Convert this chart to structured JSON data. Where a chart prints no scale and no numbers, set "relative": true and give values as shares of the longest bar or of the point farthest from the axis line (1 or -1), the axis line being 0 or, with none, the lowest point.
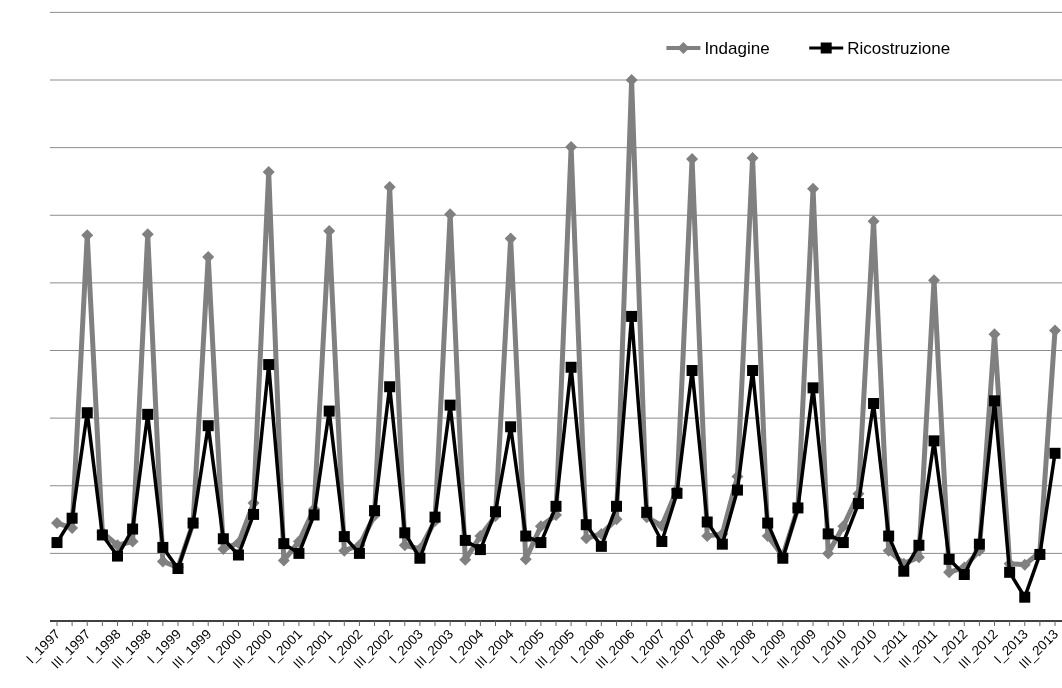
{
  "chart_data": {
    "type": "line",
    "relative": true,
    "grid": "y",
    "legend": "top right",
    "line_style": "solid",
    "categories": [
      "I_1997",
      null,
      "III_1997",
      null,
      "I_1998",
      null,
      "III_1998",
      null,
      "I_1999",
      null,
      "III_1999",
      null,
      "I_2000",
      null,
      "III_2000",
      null,
      "I_2001",
      null,
      "III_2001",
      null,
      "I_2002",
      null,
      "III_2002",
      null,
      "I_2003",
      null,
      "III_2003",
      null,
      "I_2004",
      null,
      "III_2004",
      null,
      "I_2005",
      null,
      "III_2005",
      null,
      "I_2006",
      null,
      "III_2006",
      null,
      "I_2007",
      null,
      "III_2007",
      null,
      "I_2008",
      null,
      "III_2008",
      null,
      "I_2009",
      null,
      "III_2009",
      null,
      "I_2010",
      null,
      "III_2010",
      null,
      "I_2011",
      null,
      "III_2011",
      null,
      "I_2012",
      null,
      "III_2012",
      null,
      "I_2013",
      null,
      "III_2013"
    ],
    "series": [
      {
        "name": "Indagine",
        "color": "#808080",
        "marker": "diamond",
        "values": [
          0.181,
          0.172,
          0.713,
          0.164,
          0.14,
          0.147,
          0.715,
          0.11,
          0.099,
          0.181,
          0.673,
          0.133,
          0.144,
          0.218,
          0.83,
          0.112,
          0.147,
          0.207,
          0.721,
          0.13,
          0.14,
          0.195,
          0.802,
          0.14,
          0.133,
          0.185,
          0.752,
          0.113,
          0.157,
          0.194,
          0.707,
          0.114,
          0.175,
          0.196,
          0.876,
          0.153,
          0.161,
          0.188,
          1,
          0.192,
          0.176,
          0.243,
          0.854,
          0.157,
          0.161,
          0.267,
          0.856,
          0.157,
          0.12,
          0.209,
          0.799,
          0.125,
          0.175,
          0.235,
          0.739,
          0.13,
          0.106,
          0.118,
          0.63,
          0.09,
          0.099,
          0.13,
          0.53,
          0.106,
          0.104,
          0.127,
          0.537
        ]
      },
      {
        "name": "Ricostruzione",
        "color": "#000000",
        "marker": "square",
        "values": [
          0.145,
          0.19,
          0.385,
          0.159,
          0.12,
          0.17,
          0.382,
          0.136,
          0.097,
          0.181,
          0.361,
          0.152,
          0.122,
          0.197,
          0.474,
          0.143,
          0.125,
          0.196,
          0.388,
          0.156,
          0.125,
          0.204,
          0.433,
          0.163,
          0.116,
          0.192,
          0.399,
          0.149,
          0.132,
          0.202,
          0.359,
          0.157,
          0.145,
          0.212,
          0.469,
          0.178,
          0.138,
          0.212,
          0.563,
          0.201,
          0.147,
          0.236,
          0.463,
          0.183,
          0.142,
          0.242,
          0.463,
          0.181,
          0.116,
          0.209,
          0.431,
          0.161,
          0.145,
          0.217,
          0.402,
          0.157,
          0.092,
          0.14,
          0.333,
          0.114,
          0.086,
          0.142,
          0.407,
          0.09,
          0.044,
          0.123,
          0.31
        ]
      }
    ]
  }
}
